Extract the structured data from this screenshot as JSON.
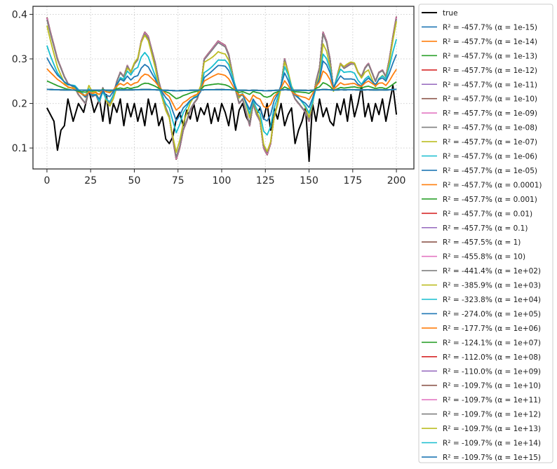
{
  "chart_data": {
    "type": "line",
    "title": "",
    "xlabel": "",
    "ylabel": "",
    "xlim": [
      -8,
      210
    ],
    "ylim": [
      0.053,
      0.418
    ],
    "x_ticks": [
      0,
      25,
      50,
      75,
      100,
      125,
      150,
      175,
      200
    ],
    "y_ticks": [
      0.1,
      0.2,
      0.3,
      0.4
    ],
    "x_tick_labels": [
      "0",
      "25",
      "50",
      "75",
      "100",
      "125",
      "150",
      "175",
      "200"
    ],
    "y_tick_labels": [
      "0.1",
      "0.2",
      "0.3",
      "0.4"
    ],
    "grid": true,
    "legend_position": "outside-right",
    "true_series": {
      "name": "true",
      "color": "#000000",
      "x": [
        0,
        4,
        6,
        8,
        10,
        12,
        15,
        18,
        21,
        24,
        27,
        30,
        32,
        34,
        36,
        38,
        40,
        42,
        44,
        46,
        48,
        50,
        52,
        54,
        56,
        58,
        60,
        62,
        64,
        66,
        68,
        70,
        72,
        74,
        76,
        78,
        80,
        82,
        84,
        86,
        88,
        90,
        92,
        94,
        96,
        98,
        100,
        102,
        104,
        106,
        108,
        110,
        112,
        114,
        116,
        118,
        120,
        122,
        124,
        126,
        128,
        130,
        132,
        134,
        136,
        138,
        140,
        142,
        144,
        146,
        148,
        150,
        152,
        154,
        156,
        158,
        160,
        162,
        164,
        166,
        168,
        170,
        172,
        174,
        176,
        178,
        180,
        182,
        184,
        186,
        188,
        190,
        192,
        194,
        196,
        198,
        200
      ],
      "y": [
        0.19,
        0.16,
        0.095,
        0.14,
        0.15,
        0.21,
        0.16,
        0.2,
        0.18,
        0.23,
        0.18,
        0.21,
        0.16,
        0.22,
        0.155,
        0.2,
        0.18,
        0.21,
        0.15,
        0.2,
        0.17,
        0.2,
        0.16,
        0.19,
        0.15,
        0.21,
        0.175,
        0.2,
        0.15,
        0.17,
        0.12,
        0.11,
        0.125,
        0.165,
        0.18,
        0.15,
        0.185,
        0.165,
        0.2,
        0.16,
        0.19,
        0.175,
        0.2,
        0.155,
        0.19,
        0.16,
        0.2,
        0.18,
        0.15,
        0.2,
        0.14,
        0.185,
        0.2,
        0.17,
        0.155,
        0.2,
        0.175,
        0.19,
        0.165,
        0.2,
        0.14,
        0.19,
        0.165,
        0.2,
        0.15,
        0.175,
        0.19,
        0.11,
        0.14,
        0.16,
        0.19,
        0.07,
        0.2,
        0.16,
        0.21,
        0.17,
        0.19,
        0.16,
        0.15,
        0.2,
        0.175,
        0.21,
        0.16,
        0.22,
        0.17,
        0.2,
        0.24,
        0.17,
        0.2,
        0.16,
        0.2,
        0.175,
        0.21,
        0.16,
        0.2,
        0.24,
        0.175
      ]
    },
    "shape_keys": {
      "x": [
        0,
        2,
        4,
        6,
        8,
        10,
        12,
        14,
        16,
        18,
        20,
        22,
        24,
        26,
        28,
        30,
        32,
        34,
        36,
        38,
        40,
        42,
        44,
        46,
        48,
        50,
        52,
        54,
        56,
        58,
        60,
        62,
        64,
        66,
        68,
        70,
        72,
        74,
        76,
        78,
        80,
        82,
        84,
        86,
        88,
        90,
        92,
        94,
        96,
        98,
        100,
        102,
        104,
        106,
        108,
        110,
        112,
        114,
        116,
        118,
        120,
        122,
        124,
        126,
        128,
        130,
        132,
        134,
        136,
        138,
        140,
        142,
        144,
        146,
        148,
        150,
        152,
        154,
        156,
        158,
        160,
        162,
        164,
        166,
        168,
        170,
        172,
        174,
        176,
        178,
        180,
        182,
        184,
        186,
        188,
        190,
        192,
        194,
        196,
        198,
        200
      ],
      "y": [
        0.393,
        0.36,
        0.33,
        0.3,
        0.28,
        0.26,
        0.245,
        0.24,
        0.235,
        0.22,
        0.21,
        0.2,
        0.23,
        0.215,
        0.22,
        0.2,
        0.235,
        0.21,
        0.2,
        0.22,
        0.25,
        0.27,
        0.26,
        0.285,
        0.27,
        0.29,
        0.3,
        0.34,
        0.36,
        0.35,
        0.32,
        0.29,
        0.25,
        0.22,
        0.19,
        0.17,
        0.12,
        0.075,
        0.1,
        0.14,
        0.16,
        0.185,
        0.2,
        0.21,
        0.235,
        0.3,
        0.31,
        0.32,
        0.33,
        0.34,
        0.335,
        0.33,
        0.31,
        0.27,
        0.23,
        0.2,
        0.21,
        0.18,
        0.15,
        0.2,
        0.175,
        0.16,
        0.1,
        0.085,
        0.11,
        0.17,
        0.2,
        0.24,
        0.3,
        0.27,
        0.23,
        0.21,
        0.2,
        0.19,
        0.18,
        0.16,
        0.2,
        0.25,
        0.28,
        0.36,
        0.34,
        0.3,
        0.23,
        0.26,
        0.29,
        0.28,
        0.285,
        0.29,
        0.29,
        0.27,
        0.26,
        0.28,
        0.29,
        0.27,
        0.25,
        0.27,
        0.275,
        0.26,
        0.3,
        0.35,
        0.395
      ]
    },
    "series": [
      {
        "label": "R² = -457.7%  (α = 1e-15)",
        "alpha_exp": -15,
        "color": "#1f77b4"
      },
      {
        "label": "R² = -457.7%  (α = 1e-14)",
        "alpha_exp": -14,
        "color": "#ff7f0e"
      },
      {
        "label": "R² = -457.7%  (α = 1e-13)",
        "alpha_exp": -13,
        "color": "#2ca02c"
      },
      {
        "label": "R² = -457.7%  (α = 1e-12)",
        "alpha_exp": -12,
        "color": "#d62728"
      },
      {
        "label": "R² = -457.7%  (α = 1e-11)",
        "alpha_exp": -11,
        "color": "#9467bd"
      },
      {
        "label": "R² = -457.7%  (α = 1e-10)",
        "alpha_exp": -10,
        "color": "#8c564b"
      },
      {
        "label": "R² = -457.7%  (α = 1e-09)",
        "alpha_exp": -9,
        "color": "#e377c2"
      },
      {
        "label": "R² = -457.7%  (α = 1e-08)",
        "alpha_exp": -8,
        "color": "#7f7f7f"
      },
      {
        "label": "R² = -457.7%  (α = 1e-07)",
        "alpha_exp": -7,
        "color": "#bcbd22"
      },
      {
        "label": "R² = -457.7%  (α = 1e-06)",
        "alpha_exp": -6,
        "color": "#17becf"
      },
      {
        "label": "R² = -457.7%  (α = 1e-05)",
        "alpha_exp": -5,
        "color": "#1f77b4"
      },
      {
        "label": "R² = -457.7%  (α = 0.0001)",
        "alpha_exp": -4,
        "color": "#ff7f0e"
      },
      {
        "label": "R² = -457.7%  (α = 0.001)",
        "alpha_exp": -3,
        "color": "#2ca02c"
      },
      {
        "label": "R² = -457.7%  (α = 0.01)",
        "alpha_exp": -2,
        "color": "#d62728"
      },
      {
        "label": "R² = -457.7%  (α = 0.1)",
        "alpha_exp": -1,
        "color": "#9467bd"
      },
      {
        "label": "R² = -457.5%  (α = 1)",
        "alpha_exp": 0,
        "color": "#8c564b"
      },
      {
        "label": "R² = -455.8%  (α = 10)",
        "alpha_exp": 1,
        "color": "#e377c2"
      },
      {
        "label": "R² = -441.4%  (α = 1e+02)",
        "alpha_exp": 2,
        "color": "#7f7f7f"
      },
      {
        "label": "R² = -385.9%  (α = 1e+03)",
        "alpha_exp": 3,
        "color": "#bcbd22"
      },
      {
        "label": "R² = -323.8%  (α = 1e+04)",
        "alpha_exp": 4,
        "color": "#17becf"
      },
      {
        "label": "R² = -274.0%  (α = 1e+05)",
        "alpha_exp": 5,
        "color": "#1f77b4"
      },
      {
        "label": "R² = -177.7%  (α = 1e+06)",
        "alpha_exp": 6,
        "color": "#ff7f0e"
      },
      {
        "label": "R² = -124.1%  (α = 1e+07)",
        "alpha_exp": 7,
        "color": "#2ca02c"
      },
      {
        "label": "R² = -112.0%  (α = 1e+08)",
        "alpha_exp": 8,
        "color": "#d62728"
      },
      {
        "label": "R² = -110.0%  (α = 1e+09)",
        "alpha_exp": 9,
        "color": "#9467bd"
      },
      {
        "label": "R² = -109.7%  (α = 1e+10)",
        "alpha_exp": 10,
        "color": "#8c564b"
      },
      {
        "label": "R² = -109.7%  (α = 1e+11)",
        "alpha_exp": 11,
        "color": "#e377c2"
      },
      {
        "label": "R² = -109.7%  (α = 1e+12)",
        "alpha_exp": 12,
        "color": "#7f7f7f"
      },
      {
        "label": "R² = -109.7%  (α = 1e+13)",
        "alpha_exp": 13,
        "color": "#bcbd22"
      },
      {
        "label": "R² = -109.7%  (α = 1e+14)",
        "alpha_exp": 14,
        "color": "#17becf"
      },
      {
        "label": "R² = -109.7%  (α = 1e+15)",
        "alpha_exp": 15,
        "color": "#1f77b4"
      }
    ]
  }
}
